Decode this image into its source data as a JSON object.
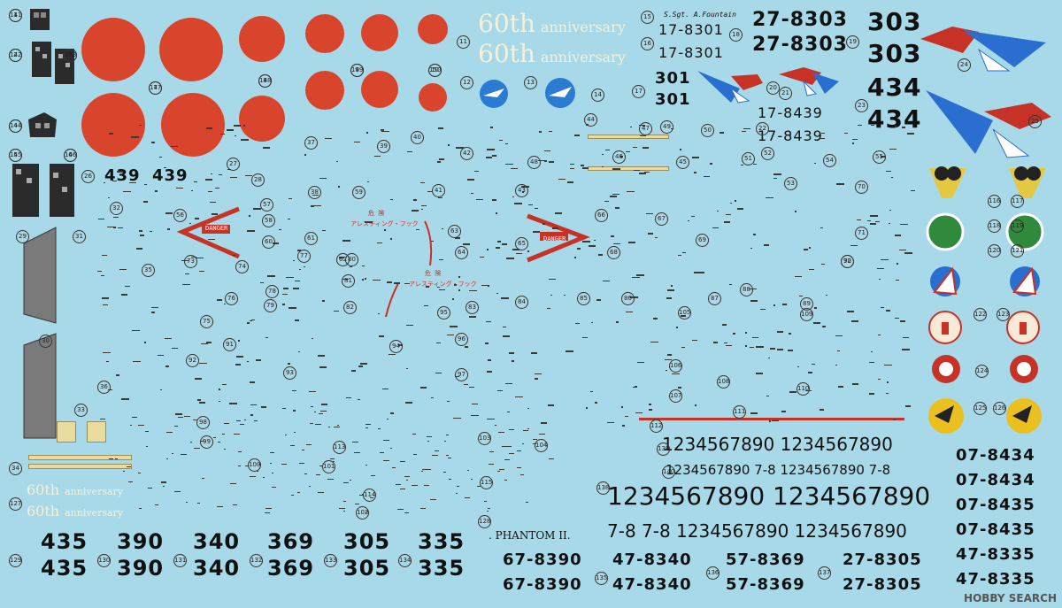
{
  "decal_numbers": [
    "1",
    "2",
    "3",
    "4",
    "5",
    "6",
    "7",
    "8",
    "9",
    "10",
    "11",
    "12",
    "13",
    "14",
    "15",
    "16",
    "17",
    "18",
    "19",
    "20",
    "21",
    "22",
    "23",
    "24",
    "25",
    "26",
    "27",
    "28",
    "29",
    "30",
    "31",
    "32",
    "33",
    "34",
    "35",
    "36",
    "37",
    "38",
    "39",
    "40",
    "41",
    "42",
    "43",
    "44",
    "45",
    "46",
    "47",
    "48",
    "49",
    "50",
    "51",
    "52",
    "53",
    "54",
    "55",
    "56",
    "57",
    "58",
    "59",
    "60",
    "61",
    "62",
    "63",
    "64",
    "65",
    "66",
    "67",
    "68",
    "69",
    "70",
    "71",
    "72",
    "73",
    "74",
    "75",
    "76",
    "77",
    "78",
    "79",
    "80",
    "81",
    "82",
    "83",
    "84",
    "85",
    "86",
    "87",
    "88",
    "89",
    "90",
    "91",
    "92",
    "93",
    "94",
    "95",
    "96",
    "97",
    "98",
    "99",
    "100",
    "101",
    "102",
    "103",
    "104",
    "105",
    "106",
    "107",
    "108",
    "109",
    "110",
    "111",
    "112",
    "113",
    "114",
    "115",
    "116",
    "117",
    "118",
    "119",
    "120",
    "121",
    "122",
    "123",
    "124",
    "125",
    "126",
    "127",
    "128",
    "129",
    "130",
    "131",
    "132",
    "133",
    "134",
    "135",
    "136",
    "137",
    "138",
    "139",
    "140",
    "141",
    "142",
    "143",
    "144",
    "145",
    "146",
    "147",
    "148",
    "149",
    "150"
  ],
  "anniversary": {
    "number": "60th",
    "text": "anniversary"
  },
  "serials_top": {
    "s1": "17-8301",
    "s2": "17-8301",
    "s3": "27-8303",
    "s4": "27-8303",
    "s5": "17-8439",
    "s6": "17-8439"
  },
  "codes_top": {
    "c301": "301",
    "c303": "303",
    "c434": "434",
    "c439": "439"
  },
  "pilot_name": "S.Sgt. A.Fountain",
  "digit_rows": {
    "r1": "1234567890 1234567890",
    "r2": "1234567890 7-8 1234567890 7-8",
    "r3": "1234567890 1234567890",
    "r4": "7-8 7-8 1234567890 1234567890"
  },
  "phantom_label": ". PHANTOM II.",
  "bottom_codes": [
    "435",
    "390",
    "340",
    "369",
    "305",
    "335"
  ],
  "bottom_serials": [
    "67-8390",
    "47-8340",
    "57-8369",
    "27-8305"
  ],
  "right_serials": [
    "07-8434",
    "07-8434",
    "07-8435",
    "07-8435",
    "47-8335",
    "47-8335"
  ],
  "warning": {
    "danger": "DANGER",
    "arrest_jp": "アレスティング・フック",
    "kiken": "危 険"
  },
  "watermark": "HOBBY SEARCH",
  "colors": {
    "background": "#a8d9e8",
    "hinomaru": "#d8452c",
    "ink": "#111111"
  }
}
